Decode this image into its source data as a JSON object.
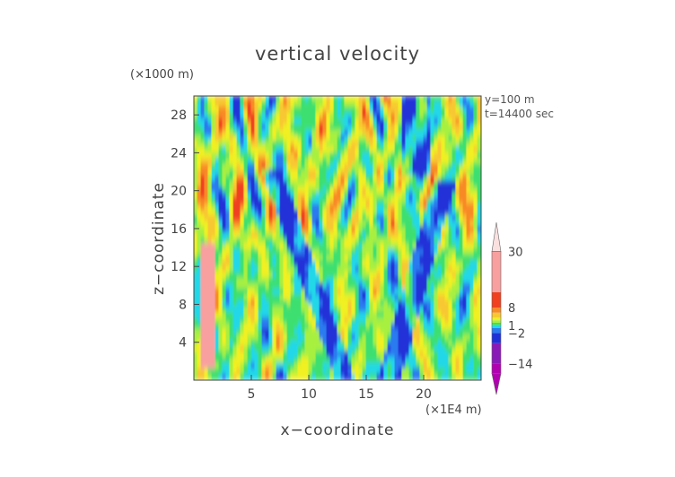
{
  "chart_data": {
    "type": "heatmap",
    "title": "vertical velocity",
    "xlabel": "x−coordinate",
    "ylabel": "z−coordinate",
    "x_unit_label": "(×1E4 m)",
    "y_unit_label": "(×1000 m)",
    "xlim": [
      0,
      25
    ],
    "ylim": [
      0,
      30
    ],
    "x_ticks": [
      5,
      10,
      15,
      20
    ],
    "y_ticks": [
      4,
      8,
      12,
      16,
      20,
      24,
      28
    ],
    "annotations": [
      "y=100  m",
      "t=14400 sec"
    ],
    "colorbar": {
      "tick_labels": [
        "30",
        "8",
        "1",
        "−2",
        "−14"
      ],
      "min": -22,
      "max": 38,
      "colors": [
        "#b000b0",
        "#8a1ab8",
        "#2030d8",
        "#2a7af0",
        "#22d8e8",
        "#3ce070",
        "#a8f040",
        "#f0f020",
        "#f8c830",
        "#f88a28",
        "#f04020",
        "#f8a0a0",
        "#fbe0e0"
      ]
    }
  }
}
